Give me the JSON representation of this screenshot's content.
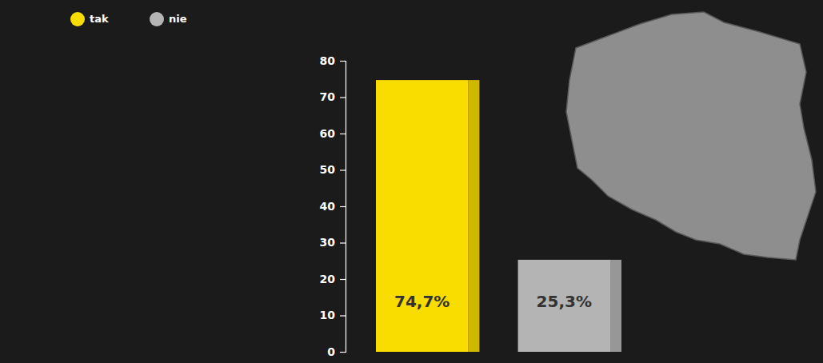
{
  "chart_data": {
    "type": "bar",
    "categories": [
      "tak",
      "nie"
    ],
    "values": [
      74.7,
      25.3
    ],
    "value_labels": [
      "74,7%",
      "25,3%"
    ],
    "colors": [
      "#f9dc00",
      "#b4b4b4"
    ],
    "ylim": [
      0,
      80
    ],
    "yticks": [
      0,
      10,
      20,
      30,
      40,
      50,
      60,
      70,
      80
    ],
    "grid": false,
    "legend": "top-left",
    "data_labels": true,
    "tick_labels": "y"
  }
}
